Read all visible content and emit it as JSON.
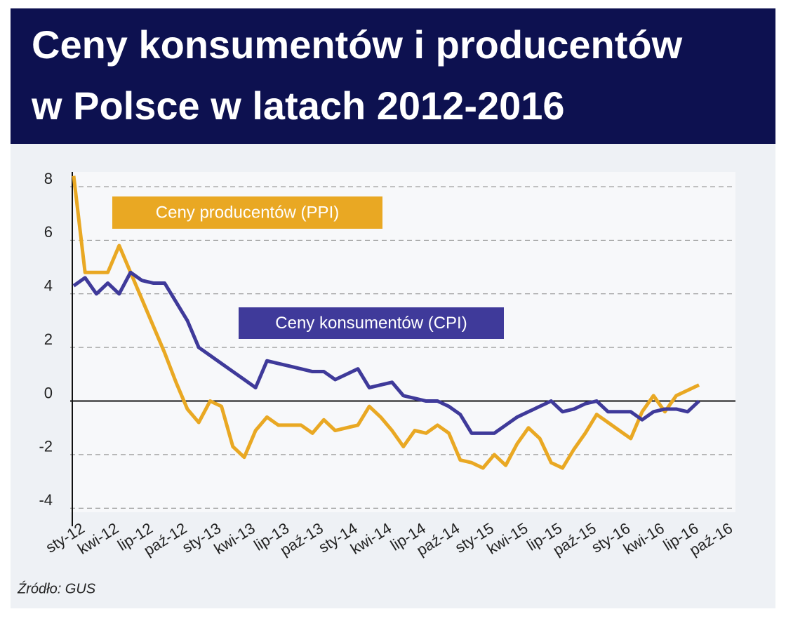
{
  "chart_data": {
    "type": "line",
    "title": [
      "Ceny konsumentów i producentów",
      "w Polsce w latach 2012-2016"
    ],
    "source": "Źródło: GUS",
    "categories": [
      "sty-12",
      null,
      null,
      "kwi-12",
      null,
      null,
      "lip-12",
      null,
      null,
      "paź-12",
      null,
      null,
      "sty-13",
      null,
      null,
      "kwi-13",
      null,
      null,
      "lip-13",
      null,
      null,
      "paź-13",
      null,
      null,
      "sty-14",
      null,
      null,
      "kwi-14",
      null,
      null,
      "lip-14",
      null,
      null,
      "paź-14",
      null,
      null,
      "sty-15",
      null,
      null,
      "kwi-15",
      null,
      null,
      "lip-15",
      null,
      null,
      "paź-15",
      null,
      null,
      "sty-16",
      null,
      null,
      "kwi-16",
      null,
      null,
      "lip-16",
      null,
      null,
      "paź-16"
    ],
    "series": [
      {
        "name": "Ceny producentów (PPI)",
        "color": "#e9a823",
        "values": [
          8.4,
          4.8,
          4.8,
          4.8,
          5.8,
          4.8,
          3.8,
          2.8,
          1.8,
          0.7,
          -0.3,
          -0.8,
          0.0,
          -0.2,
          -1.7,
          -2.1,
          -1.1,
          -0.6,
          -0.9,
          -0.9,
          -0.9,
          -1.2,
          -0.7,
          -1.1,
          -1.0,
          -0.9,
          -0.2,
          -0.6,
          -1.1,
          -1.7,
          -1.1,
          -1.2,
          -0.9,
          -1.2,
          -2.2,
          -2.3,
          -2.5,
          -2.0,
          -2.4,
          -1.6,
          -1.0,
          -1.4,
          -2.3,
          -2.5,
          -1.8,
          -1.2,
          -0.5,
          -0.8,
          -1.1,
          -1.4,
          -0.4,
          0.2,
          -0.4,
          0.2,
          0.4,
          0.6,
          null,
          null
        ]
      },
      {
        "name": "Ceny konsumentów (CPI)",
        "color": "#3f3a9a",
        "values": [
          4.3,
          4.6,
          4.0,
          4.4,
          4.0,
          4.8,
          4.5,
          4.4,
          4.4,
          3.7,
          3.0,
          2.0,
          1.7,
          1.4,
          1.1,
          0.8,
          0.5,
          1.5,
          1.4,
          1.3,
          1.2,
          1.1,
          1.1,
          0.8,
          1.0,
          1.2,
          0.5,
          0.6,
          0.7,
          0.2,
          0.1,
          0.0,
          0.0,
          -0.2,
          -0.5,
          -1.2,
          -1.2,
          -1.2,
          -0.9,
          -0.6,
          -0.4,
          -0.2,
          0.0,
          -0.4,
          -0.3,
          -0.1,
          0.0,
          -0.4,
          -0.4,
          -0.4,
          -0.7,
          -0.4,
          -0.3,
          -0.3,
          -0.4,
          0.0,
          null,
          null
        ]
      }
    ],
    "ylim": [
      -4.15,
      8.55
    ],
    "yticks": [
      8,
      6,
      4,
      2,
      0,
      -2,
      -4
    ],
    "grid": true
  }
}
